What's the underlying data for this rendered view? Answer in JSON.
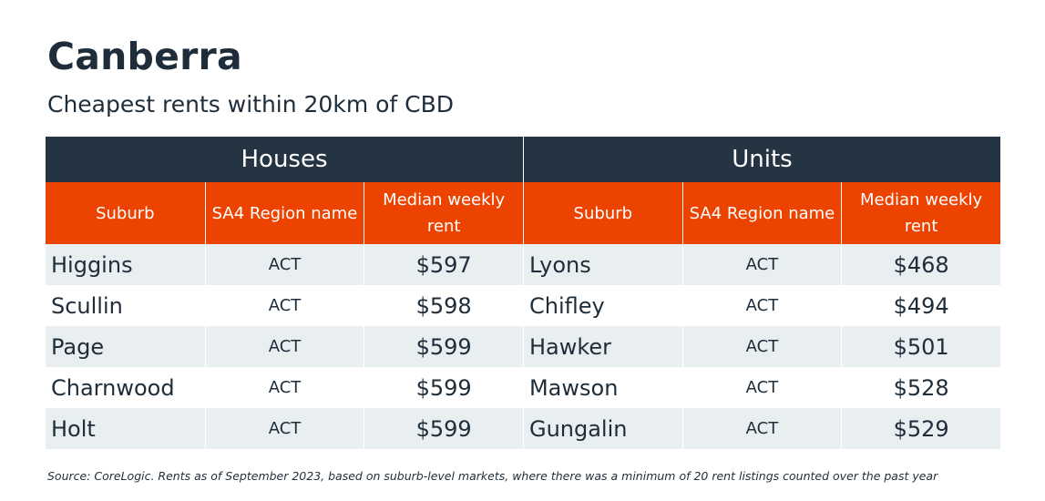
{
  "title": "Canberra",
  "subtitle": "Cheapest rents within 20km of CBD",
  "colors": {
    "dark_header": "#243443",
    "accent_orange": "#ec4300",
    "row_stripe": "#e9eef1"
  },
  "groups": [
    "Houses",
    "Units"
  ],
  "columns": [
    "Suburb",
    "SA4 Region name",
    "Median weekly rent",
    "Suburb",
    "SA4 Region name",
    "Median weekly rent"
  ],
  "rows": [
    [
      "Higgins",
      "ACT",
      "$597",
      "Lyons",
      "ACT",
      "$468"
    ],
    [
      "Scullin",
      "ACT",
      "$598",
      "Chifley",
      "ACT",
      "$494"
    ],
    [
      "Page",
      "ACT",
      "$599",
      "Hawker",
      "ACT",
      "$501"
    ],
    [
      "Charnwood",
      "ACT",
      "$599",
      "Mawson",
      "ACT",
      "$528"
    ],
    [
      "Holt",
      "ACT",
      "$599",
      "Gungalin",
      "ACT",
      "$529"
    ]
  ],
  "source": "Source: CoreLogic. Rents as of September 2023, based on suburb-level markets, where there was a minimum of 20 rent listings counted over the past year",
  "chart_data": {
    "type": "table",
    "title": "Canberra",
    "subtitle": "Cheapest rents within 20km of CBD",
    "groups": [
      {
        "name": "Houses",
        "columns": [
          "Suburb",
          "SA4 Region name",
          "Median weekly rent"
        ],
        "rows": [
          [
            "Higgins",
            "ACT",
            597
          ],
          [
            "Scullin",
            "ACT",
            598
          ],
          [
            "Page",
            "ACT",
            599
          ],
          [
            "Charnwood",
            "ACT",
            599
          ],
          [
            "Holt",
            "ACT",
            599
          ]
        ]
      },
      {
        "name": "Units",
        "columns": [
          "Suburb",
          "SA4 Region name",
          "Median weekly rent"
        ],
        "rows": [
          [
            "Lyons",
            "ACT",
            468
          ],
          [
            "Chifley",
            "ACT",
            494
          ],
          [
            "Hawker",
            "ACT",
            501
          ],
          [
            "Mawson",
            "ACT",
            528
          ],
          [
            "Gungalin",
            "ACT",
            529
          ]
        ]
      }
    ]
  }
}
